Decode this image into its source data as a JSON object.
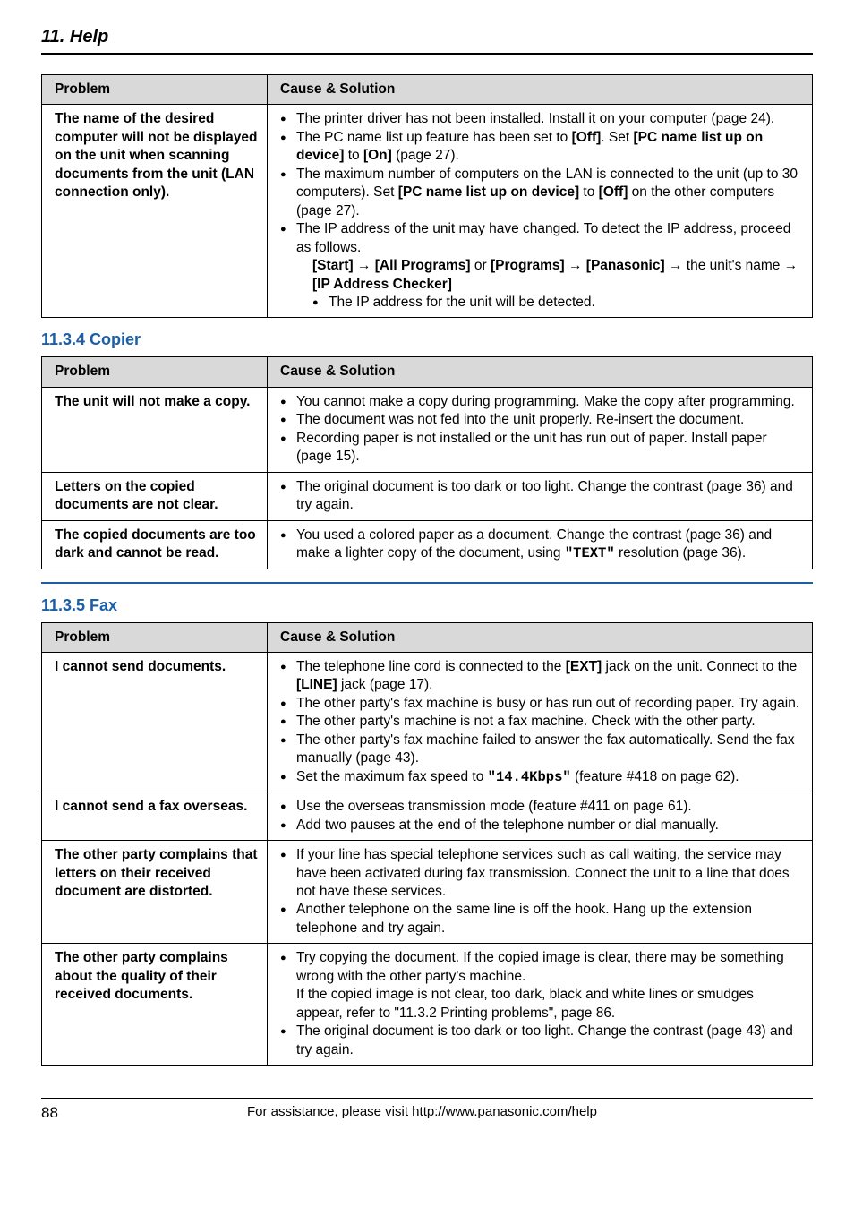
{
  "header": {
    "chapter": "11. Help"
  },
  "colors": {
    "heading_blue": "#1b5fa6",
    "table_header_bg": "#d9d9d9",
    "border": "#000000"
  },
  "tables": {
    "first": {
      "head": {
        "problem": "Problem",
        "solution": "Cause & Solution"
      },
      "rows": [
        {
          "problem": "The name of the desired computer will not be displayed on the unit when scanning documents from the unit (LAN connection only).",
          "bullets": [
            {
              "html": "The printer driver has not been installed. Install it on your computer (page 24)."
            },
            {
              "html": "The PC name list up feature has been set to <b>[Off]</b>. Set <b>[PC name list up on device]</b> to <b>[On]</b> (page 27)."
            },
            {
              "html": "The maximum number of computers on the LAN is connected to the unit (up to 30 computers). Set <b>[PC name list up on device]</b> to <b>[Off]</b> on the other computers (page 27)."
            },
            {
              "html": "The IP address of the unit may have changed. To detect the IP address, proceed as follows.<br><span class=\"inner-line\"><b>[Start]</b> <span class=\"arrow\">→</span> <b>[All Programs]</b> or <b>[Programs]</b> <span class=\"arrow\">→</span> <b>[Panasonic]</b> <span class=\"arrow\">→</span> the unit's name <span class=\"arrow\">→</span> <b>[IP Address Checker]</b></span>",
              "sub": [
                {
                  "html": "The IP address for the unit will be detected."
                }
              ]
            }
          ]
        }
      ]
    },
    "copier": {
      "heading": "11.3.4 Copier",
      "head": {
        "problem": "Problem",
        "solution": "Cause & Solution"
      },
      "rows": [
        {
          "problem": "The unit will not make a copy.",
          "bullets": [
            {
              "html": "You cannot make a copy during programming. Make the copy after programming."
            },
            {
              "html": "The document was not fed into the unit properly. Re-insert the document."
            },
            {
              "html": "Recording paper is not installed or the unit has run out of paper. Install paper (page 15)."
            }
          ]
        },
        {
          "problem": "Letters on the copied documents are not clear.",
          "bullets": [
            {
              "html": "The original document is too dark or too light. Change the contrast (page 36) and try again."
            }
          ]
        },
        {
          "problem": "The copied documents are too dark and cannot be read.",
          "bullets": [
            {
              "html": "You used a colored paper as a document. Change the contrast (page 36) and make a lighter copy of the document, using <span class=\"mono\">\"TEXT\"</span> resolution (page 36)."
            }
          ]
        }
      ]
    },
    "fax": {
      "heading": "11.3.5 Fax",
      "head": {
        "problem": "Problem",
        "solution": "Cause & Solution"
      },
      "rows": [
        {
          "problem": "I cannot send documents.",
          "bullets": [
            {
              "html": "The telephone line cord is connected to the <b>[EXT]</b> jack on the unit. Connect to the <b>[LINE]</b> jack (page 17)."
            },
            {
              "html": "The other party's fax machine is busy or has run out of recording paper. Try again."
            },
            {
              "html": "The other party's machine is not a fax machine. Check with the other party."
            },
            {
              "html": "The other party's fax machine failed to answer the fax automatically. Send the fax manually (page 43)."
            },
            {
              "html": "Set the maximum fax speed to <span class=\"mono\">\"14.4Kbps\"</span> (feature #418 on page 62)."
            }
          ]
        },
        {
          "problem": "I cannot send a fax overseas.",
          "bullets": [
            {
              "html": "Use the overseas transmission mode (feature #411 on page 61)."
            },
            {
              "html": "Add two pauses at the end of the telephone number or dial manually."
            }
          ]
        },
        {
          "problem": "The other party complains that letters on their received document are distorted.",
          "bullets": [
            {
              "html": "If your line has special telephone services such as call waiting, the service may have been activated during fax transmission. Connect the unit to a line that does not have these services."
            },
            {
              "html": "Another telephone on the same line is off the hook. Hang up the extension telephone and try again."
            }
          ]
        },
        {
          "problem": "The other party complains about the quality of their received documents.",
          "bullets": [
            {
              "html": "Try copying the document. If the copied image is clear, there may be something wrong with the other party's machine.<br>If the copied image is not clear, too dark, black and white lines or smudges appear, refer to \"11.3.2 Printing problems\", page 86."
            },
            {
              "html": "The original document is too dark or too light. Change the contrast (page 43) and try again."
            }
          ]
        }
      ]
    }
  },
  "footer": {
    "page": "88",
    "assist": "For assistance, please visit http://www.panasonic.com/help"
  }
}
